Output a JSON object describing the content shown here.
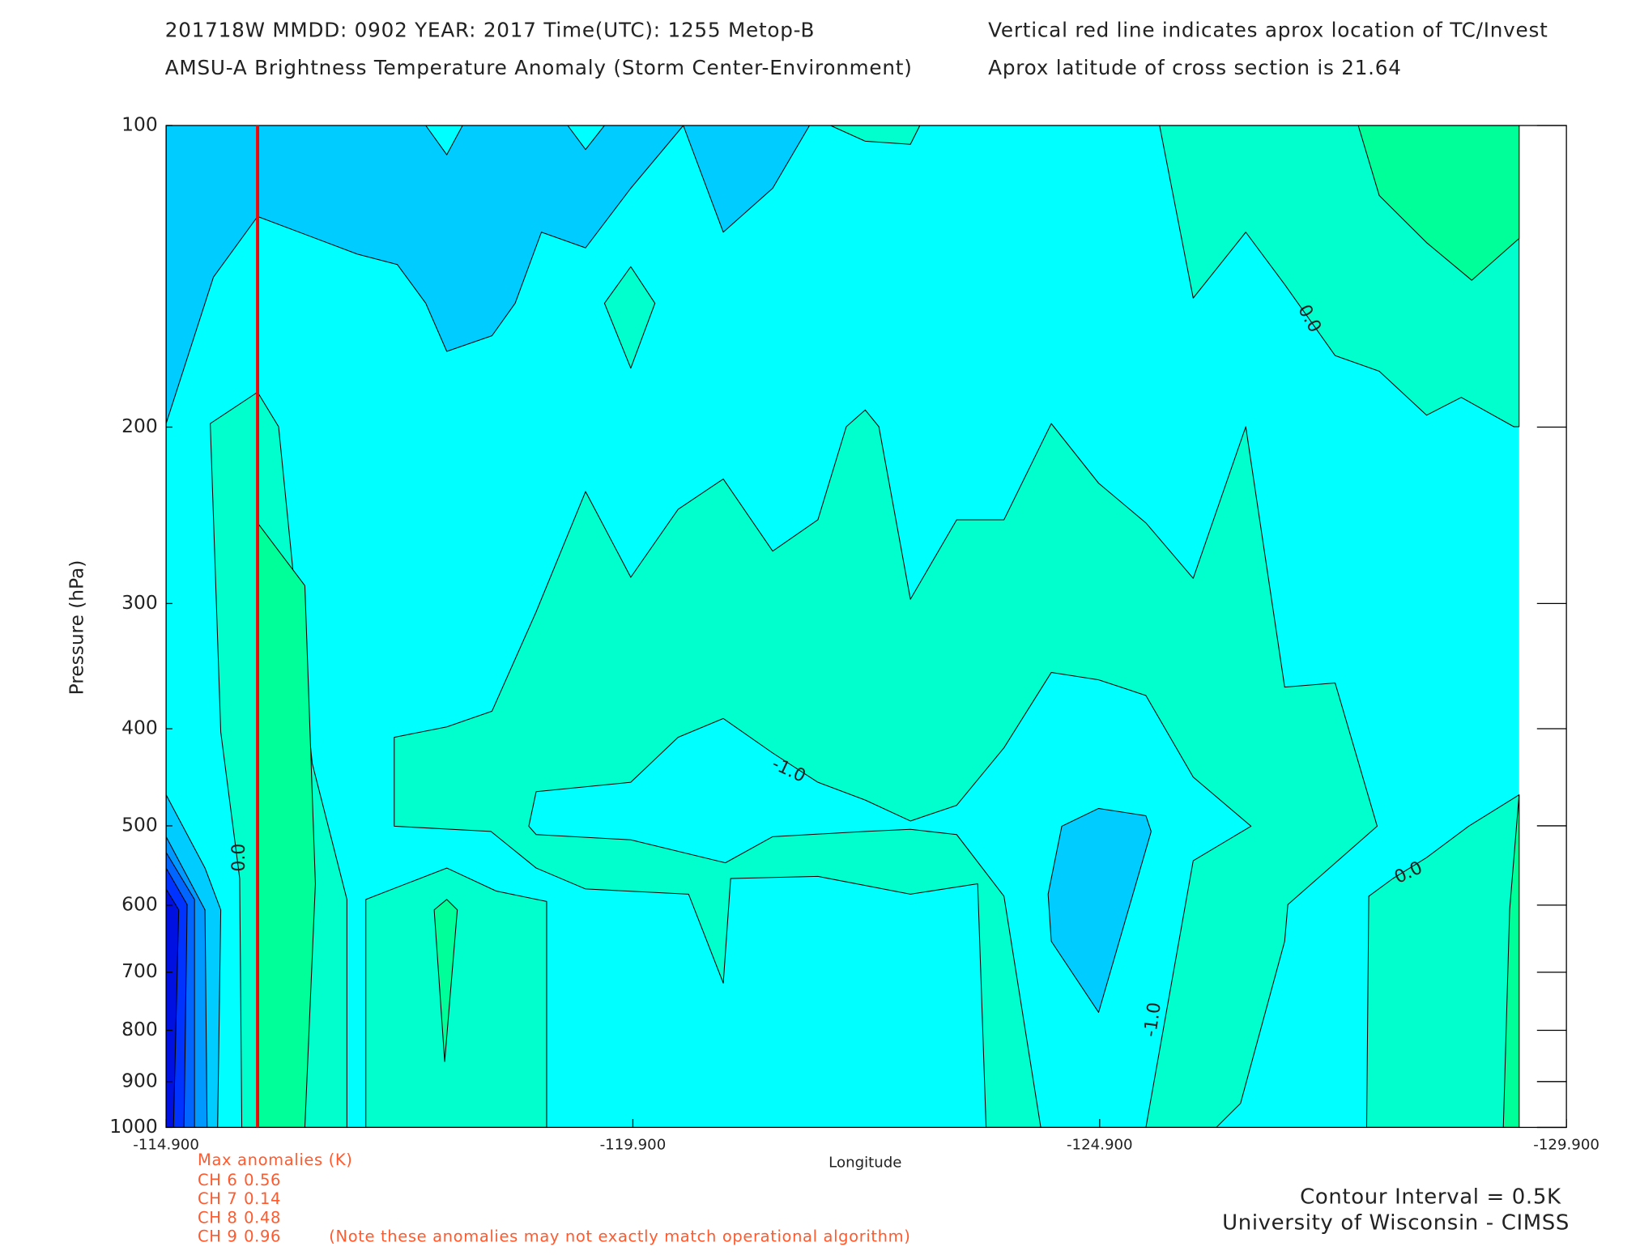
{
  "chart_data": {
    "type": "contour",
    "title": "201718W  MMDD: 0902 YEAR: 2017 Time(UTC): 1255 Metop-B",
    "subtitle": "AMSU-A Brightness Temperature Anomaly (Storm Center-Environment)",
    "note_line1": "Vertical red line indicates aprox location of TC/Invest",
    "note_line2": "Aprox latitude of cross section is 21.64",
    "x_label": "Longitude",
    "y_label": "Pressure (hPa)",
    "xlim": [
      -114.9,
      -129.9
    ],
    "xticks": [
      {
        "value": -114.9,
        "label": "-114.900"
      },
      {
        "value": -119.9,
        "label": "-119.900"
      },
      {
        "value": -124.9,
        "label": "-124.900"
      },
      {
        "value": -129.9,
        "label": "-129.900"
      }
    ],
    "ylim": [
      1000,
      100
    ],
    "yticks": [
      100,
      200,
      300,
      400,
      500,
      600,
      700,
      800,
      900,
      1000
    ],
    "y_log_scale": true,
    "tc_longitude": -115.88,
    "tc_line_color": "#ff0000",
    "contour_labels": [
      "0.0",
      "-1.0",
      "0.0",
      "0.0",
      "-1.0"
    ],
    "max_anomalies": {
      "title": "Max anomalies (K)",
      "rows": [
        {
          "channel": "CH 6",
          "value": 0.56
        },
        {
          "channel": "CH 7",
          "value": 0.14
        },
        {
          "channel": "CH 8",
          "value": 0.48
        },
        {
          "channel": "CH 9",
          "value": 0.96
        }
      ],
      "note": "(Note these anomalies may not exactly match operational algorithm)"
    },
    "contour_interval": "Contour Interval = 0.5K",
    "credit": "University of Wisconsin - CIMSS"
  }
}
